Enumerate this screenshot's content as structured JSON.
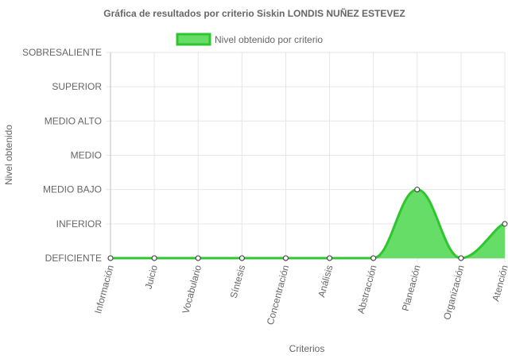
{
  "chart_data": {
    "type": "area",
    "title": "Gráfica de resultados por criterio Siskin LONDIS NUÑEZ ESTEVEZ",
    "xlabel": "Criterios",
    "ylabel": "Nivel obtenido",
    "categories": [
      "Información",
      "Juicio",
      "Vocabulario",
      "Síntesis",
      "Concentración",
      "Análisis",
      "Abstracción",
      "Planeación",
      "Organización",
      "Atención"
    ],
    "y_levels": [
      "DEFICIENTE",
      "INFERIOR",
      "MEDIO BAJO",
      "MEDIO",
      "MEDIO ALTO",
      "SUPERIOR",
      "SOBRESALIENTE"
    ],
    "ylim": [
      0,
      6
    ],
    "series": [
      {
        "name": "Nivel obtenido por criterio",
        "values": [
          0,
          0,
          0,
          0,
          0,
          0,
          0,
          2,
          0,
          1
        ],
        "color": "#2ec52e",
        "fill": "#66dd66"
      }
    ],
    "legend": "top-center",
    "grid": true
  }
}
